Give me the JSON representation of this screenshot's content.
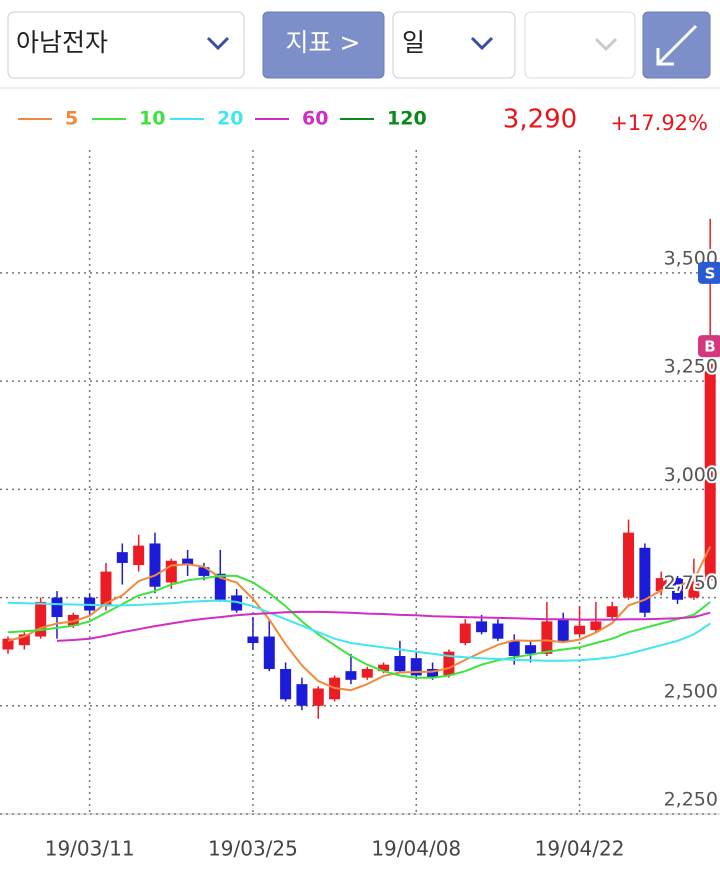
{
  "toolbar": {
    "stock": "아남전자",
    "indicator_button": "지표 >",
    "period": "일"
  },
  "chart_data": {
    "type": "candlestick",
    "price": "3,290",
    "change": "+17.92%",
    "categories": [
      null,
      null,
      null,
      null,
      null,
      "19/03/11",
      null,
      null,
      null,
      null,
      null,
      null,
      null,
      null,
      null,
      "19/03/25",
      null,
      null,
      null,
      null,
      null,
      null,
      null,
      null,
      null,
      "19/04/08",
      null,
      null,
      null,
      null,
      null,
      null,
      null,
      null,
      null,
      "19/04/22",
      null,
      null,
      null,
      null,
      null,
      null,
      null,
      null
    ],
    "open": [
      2630,
      2640,
      2660,
      2750,
      2685,
      2750,
      2730,
      2855,
      2825,
      2875,
      2785,
      2840,
      2820,
      2805,
      2755,
      2660,
      2660,
      2585,
      2550,
      2500,
      2515,
      2580,
      2565,
      2580,
      2615,
      2610,
      2585,
      2570,
      2645,
      2695,
      2690,
      2650,
      2640,
      2620,
      2700,
      2665,
      2675,
      2705,
      2750,
      2865,
      2765,
      2795,
      2750,
      2790
    ],
    "high": [
      2660,
      2670,
      2750,
      2765,
      2715,
      2760,
      2830,
      2875,
      2895,
      2900,
      2840,
      2860,
      2830,
      2860,
      2770,
      2705,
      2700,
      2600,
      2565,
      2545,
      2570,
      2620,
      2590,
      2600,
      2650,
      2625,
      2600,
      2630,
      2700,
      2710,
      2700,
      2665,
      2650,
      2740,
      2715,
      2730,
      2740,
      2740,
      2930,
      2875,
      2810,
      2800,
      2840,
      3625
    ],
    "low": [
      2620,
      2630,
      2655,
      2655,
      2680,
      2710,
      2720,
      2780,
      2810,
      2760,
      2770,
      2800,
      2790,
      2740,
      2715,
      2630,
      2580,
      2510,
      2490,
      2470,
      2510,
      2550,
      2560,
      2575,
      2575,
      2565,
      2560,
      2565,
      2640,
      2665,
      2650,
      2595,
      2600,
      2615,
      2645,
      2660,
      2670,
      2700,
      2745,
      2705,
      2755,
      2735,
      2745,
      2785
    ],
    "close": [
      2655,
      2665,
      2740,
      2705,
      2710,
      2720,
      2810,
      2830,
      2870,
      2775,
      2835,
      2825,
      2800,
      2745,
      2720,
      2645,
      2585,
      2515,
      2500,
      2540,
      2565,
      2560,
      2585,
      2595,
      2580,
      2570,
      2565,
      2625,
      2690,
      2670,
      2655,
      2615,
      2620,
      2695,
      2650,
      2685,
      2695,
      2730,
      2900,
      2715,
      2795,
      2745,
      2795,
      3290
    ],
    "up_color": "#ec1c24",
    "down_color": "#1c1cd8",
    "moving_averages": [
      {
        "name": "5",
        "color": "#f2893b",
        "values": [
          2650,
          2660,
          2680,
          2690,
          2695,
          2708,
          2737,
          2755,
          2788,
          2801,
          2824,
          2827,
          2821,
          2796,
          2785,
          2747,
          2699,
          2642,
          2593,
          2557,
          2541,
          2536,
          2550,
          2569,
          2577,
          2578,
          2579,
          2587,
          2606,
          2624,
          2641,
          2651,
          2650,
          2651,
          2647,
          2653,
          2669,
          2691,
          2732,
          2745,
          2767,
          2777,
          2790,
          2868
        ]
      },
      {
        "name": "10",
        "color": "#3fe33f",
        "values": [
          2670,
          2672,
          2675,
          2680,
          2685,
          2695,
          2715,
          2735,
          2755,
          2765,
          2780,
          2790,
          2795,
          2800,
          2800,
          2785,
          2760,
          2730,
          2695,
          2665,
          2640,
          2615,
          2595,
          2580,
          2570,
          2565,
          2565,
          2570,
          2580,
          2595,
          2605,
          2612,
          2618,
          2625,
          2630,
          2635,
          2645,
          2655,
          2670,
          2680,
          2690,
          2700,
          2710,
          2740
        ]
      },
      {
        "name": "20",
        "color": "#42e6f0",
        "values": [
          2738,
          2737,
          2736,
          2735,
          2734,
          2733,
          2732,
          2732,
          2733,
          2735,
          2737,
          2740,
          2742,
          2743,
          2740,
          2730,
          2715,
          2700,
          2685,
          2670,
          2655,
          2645,
          2640,
          2635,
          2630,
          2625,
          2620,
          2615,
          2612,
          2610,
          2608,
          2606,
          2605,
          2604,
          2604,
          2605,
          2608,
          2612,
          2620,
          2630,
          2640,
          2650,
          2665,
          2690
        ]
      },
      {
        "name": "60",
        "color": "#d22cc6",
        "values": [
          null,
          null,
          null,
          2650,
          2652,
          2655,
          2662,
          2670,
          2677,
          2684,
          2690,
          2696,
          2701,
          2705,
          2709,
          2712,
          2714,
          2716,
          2717,
          2717,
          2716,
          2715,
          2713,
          2712,
          2710,
          2709,
          2707,
          2706,
          2705,
          2704,
          2703,
          2702,
          2701,
          2700,
          2700,
          2699,
          2699,
          2699,
          2700,
          2700,
          2701,
          2702,
          2705,
          2715
        ]
      },
      {
        "name": "120",
        "color": "#0b8a1c",
        "values": [
          null,
          null,
          null,
          null,
          null,
          null,
          null,
          null,
          null,
          null,
          null,
          null,
          null,
          null,
          null,
          null,
          null,
          null,
          null,
          null,
          null,
          null,
          null,
          null,
          null,
          null,
          null,
          null,
          null,
          null,
          null,
          null,
          null,
          null,
          null,
          null,
          null,
          null,
          null,
          null,
          null,
          null,
          null,
          null
        ]
      }
    ],
    "ylim": [
      2250,
      3784
    ],
    "yticks": [
      {
        "value": 2250,
        "label": "2,250"
      },
      {
        "value": 2500,
        "label": "2,500"
      },
      {
        "value": 2750,
        "label": "2,750"
      },
      {
        "value": 3000,
        "label": "3,000"
      },
      {
        "value": 3250,
        "label": "3,250"
      },
      {
        "value": 3500,
        "label": "3,500"
      }
    ],
    "markers": [
      {
        "label": "S",
        "value": 3500,
        "color": "#2a5bd0"
      },
      {
        "label": "B",
        "value": 3331,
        "color": "#d5377d"
      }
    ],
    "grid": true
  }
}
